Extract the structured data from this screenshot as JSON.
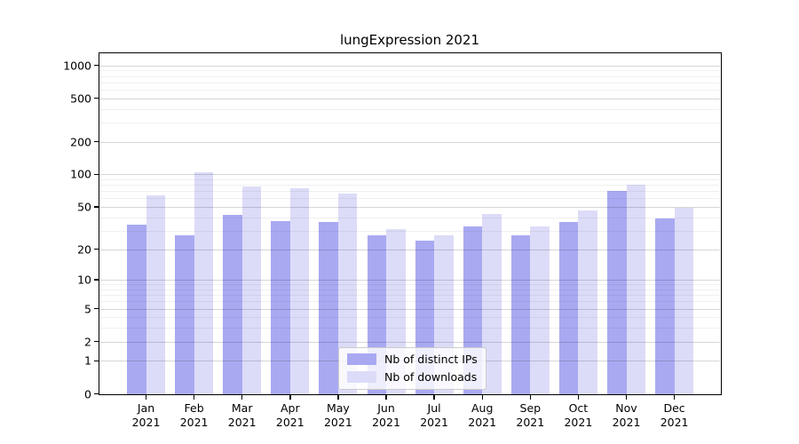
{
  "title": "lungExpression 2021",
  "year": "2021",
  "colors": {
    "distinct_ips_bar": "#a9a9f2",
    "downloads_bar": "#dcdcf8",
    "major_grid": "#d6d6d6",
    "minor_grid": "#efefef",
    "axis": "#000000"
  },
  "legend": {
    "items": [
      {
        "label": "Nb of distinct IPs",
        "color": "#a9a9f2"
      },
      {
        "label": "Nb of downloads",
        "color": "#dcdcf8"
      }
    ],
    "position": "lower center"
  },
  "chart_data": {
    "type": "bar",
    "title": "lungExpression 2021",
    "months": [
      "Jan",
      "Feb",
      "Mar",
      "Apr",
      "May",
      "Jun",
      "Jul",
      "Aug",
      "Sep",
      "Oct",
      "Nov",
      "Dec"
    ],
    "year": "2021",
    "categories": [
      "Jan 2021",
      "Feb 2021",
      "Mar 2021",
      "Apr 2021",
      "May 2021",
      "Jun 2021",
      "Jul 2021",
      "Aug 2021",
      "Sep 2021",
      "Oct 2021",
      "Nov 2021",
      "Dec 2021"
    ],
    "series": [
      {
        "name": "Nb of distinct IPs",
        "color": "#a9a9f2",
        "values": [
          34,
          27,
          42,
          37,
          36,
          27,
          24,
          33,
          27,
          36,
          70,
          39
        ]
      },
      {
        "name": "Nb of downloads",
        "color": "#dcdcf8",
        "values": [
          64,
          105,
          77,
          75,
          66,
          31,
          27,
          43,
          33,
          46,
          80,
          49
        ]
      }
    ],
    "xlabel": "",
    "ylabel": "",
    "yscale": "log1p",
    "ylim": [
      0,
      1280
    ],
    "yticks": [
      0,
      1,
      2,
      5,
      10,
      20,
      50,
      100,
      200,
      500,
      1000
    ],
    "y_minor_gridlines": [
      3,
      4,
      6,
      7,
      8,
      9,
      30,
      40,
      60,
      70,
      80,
      90,
      300,
      400,
      600,
      700,
      800,
      900
    ],
    "grid": true,
    "legend_position": "lower center"
  }
}
